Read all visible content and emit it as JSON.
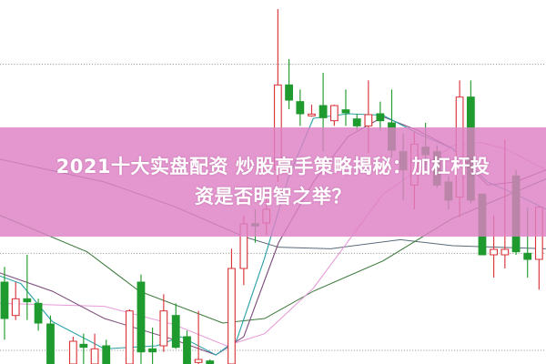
{
  "banner": {
    "title_line1": "2021十大实盘配资 炒股高手策略揭秘：加杠杆投",
    "title_line2": "资是否明智之举？",
    "background_color": "#de80c4",
    "text_color": "#ffffff"
  },
  "chart": {
    "kind": "candlestick",
    "up_color": "#d9343a",
    "down_color": "#1f9a2e",
    "grid": "dotted horizontal"
  }
}
